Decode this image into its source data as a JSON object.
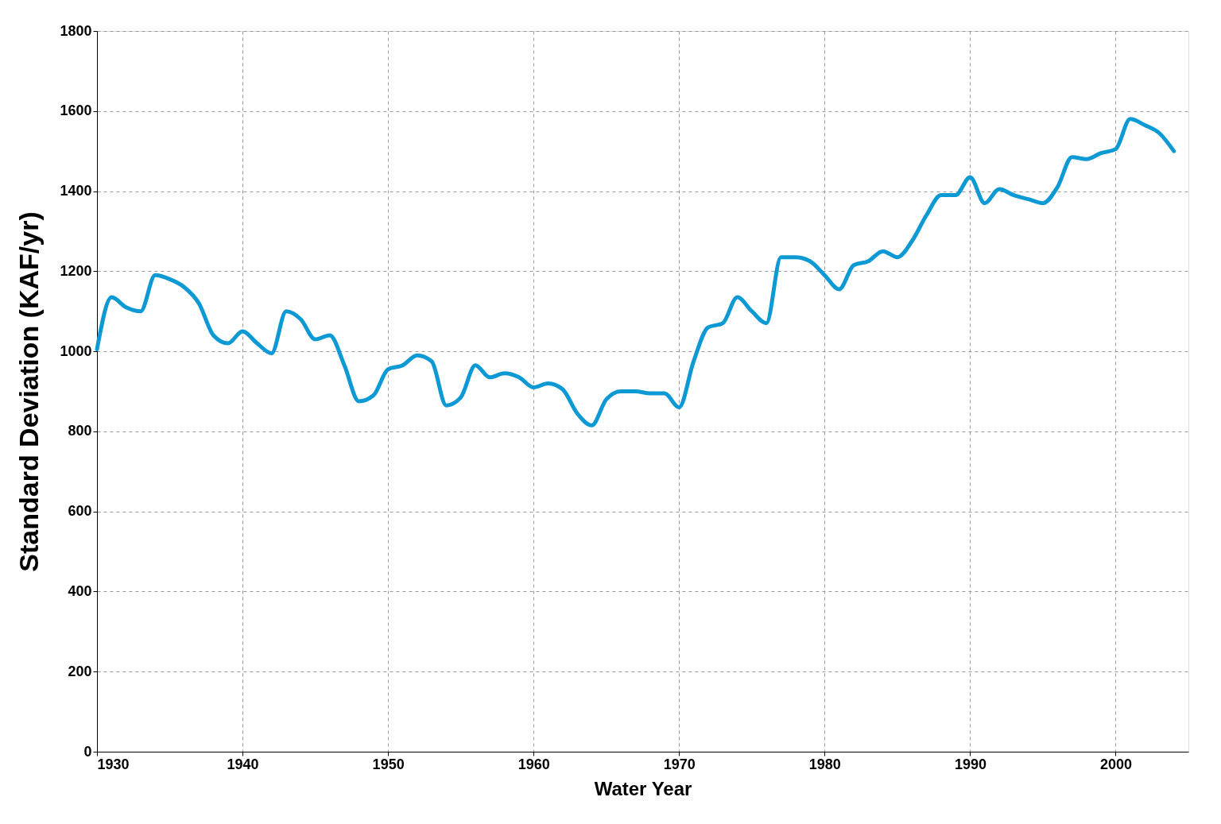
{
  "chart_data": {
    "type": "line",
    "xlabel": "Water Year",
    "ylabel": "Standard Deviation  (KAF/yr)",
    "x": [
      1930,
      1931,
      1932,
      1933,
      1934,
      1935,
      1936,
      1937,
      1938,
      1939,
      1940,
      1941,
      1942,
      1943,
      1944,
      1945,
      1946,
      1947,
      1948,
      1949,
      1950,
      1951,
      1952,
      1953,
      1954,
      1955,
      1956,
      1957,
      1958,
      1959,
      1960,
      1961,
      1962,
      1963,
      1964,
      1965,
      1966,
      1967,
      1968,
      1969,
      1970,
      1971,
      1972,
      1973,
      1974,
      1975,
      1976,
      1977,
      1978,
      1979,
      1980,
      1981,
      1982,
      1983,
      1984,
      1985,
      1986,
      1987,
      1988,
      1989,
      1990,
      1991,
      1992,
      1993,
      1994,
      1995,
      1996,
      1997,
      1998,
      1999,
      2000,
      2001,
      2002,
      2003,
      2004
    ],
    "series": [
      {
        "color": "#0d9ad4",
        "values": [
          1005,
          1135,
          1110,
          1100,
          1190,
          1180,
          1160,
          1120,
          1040,
          1020,
          1050,
          1020,
          995,
          1100,
          1080,
          1030,
          1040,
          965,
          875,
          890,
          955,
          965,
          990,
          975,
          865,
          885,
          965,
          935,
          945,
          935,
          910,
          920,
          905,
          845,
          815,
          880,
          900,
          900,
          895,
          895,
          860,
          975,
          1060,
          1070,
          1135,
          1100,
          1070,
          1235,
          1235,
          1225,
          1190,
          1155,
          1215,
          1225,
          1250,
          1235,
          1275,
          1340,
          1390,
          1390,
          1435,
          1370,
          1405,
          1390,
          1380,
          1370,
          1410,
          1485,
          1480,
          1495,
          1505,
          1580,
          1565,
          1545,
          1500
        ]
      }
    ],
    "xlim": [
      1930,
      2005
    ],
    "xticks": [
      1930,
      1940,
      1950,
      1960,
      1970,
      1980,
      1990,
      2000
    ],
    "ylim": [
      0,
      1800
    ],
    "yticks": [
      0,
      200,
      400,
      600,
      800,
      1000,
      1200,
      1400,
      1600,
      1800
    ],
    "grid": true,
    "marker": "none",
    "line_style": "solid"
  }
}
